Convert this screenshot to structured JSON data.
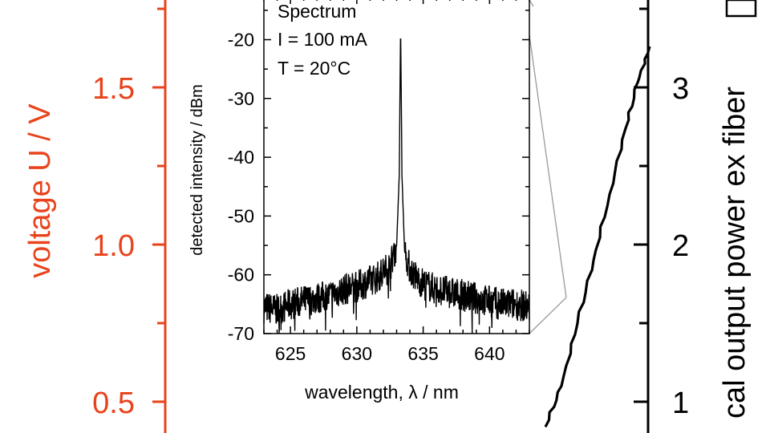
{
  "colors": {
    "voltage": "#e8431c",
    "power": "#000000",
    "inset_zoom_lines": "#9a9a9a"
  },
  "chart_data": [
    {
      "type": "line",
      "title": "",
      "ylabel_left": "voltage U / V",
      "ylabel_right": "cal output power ex fiber",
      "y_left_tick_labels": [
        "1.5",
        "1.0",
        "0.5"
      ],
      "y_left_visible_range": [
        0.31,
        1.88
      ],
      "y_right_tick_labels": [
        "3",
        "2",
        "1"
      ],
      "y_right_visible_range": [
        0.8,
        3.55
      ],
      "left_axis_color": "#e8431c",
      "right_axis_color": "#000000",
      "series": [
        {
          "axis": "right",
          "color": "#000000",
          "points": [
            {
              "x": -0.2,
              "y": 0.84
            },
            {
              "x": 0.0,
              "y": 1.1
            },
            {
              "x": 0.2,
              "y": 1.5
            },
            {
              "x": 0.4,
              "y": 1.9
            },
            {
              "x": 0.6,
              "y": 2.32
            },
            {
              "x": 0.8,
              "y": 2.74
            },
            {
              "x": 0.95,
              "y": 3.03
            },
            {
              "x": 1.1,
              "y": 3.26
            }
          ]
        }
      ]
    },
    {
      "type": "line",
      "title": "",
      "annotation": [
        "Spectrum",
        "I = 100 mA",
        "T = 20°C"
      ],
      "xlabel": "wavelength, λ / nm",
      "ylabel": "detected intensity / dBm",
      "x_ticks": [
        625,
        630,
        635,
        640
      ],
      "y_ticks": [
        -20,
        -30,
        -40,
        -50,
        -60,
        -70
      ],
      "xlim": [
        623,
        643
      ],
      "ylim": [
        -70,
        -15
      ],
      "series": [
        {
          "color": "#000000",
          "x": [
            623,
            624,
            625,
            626,
            627,
            628,
            629,
            630,
            630.5,
            631,
            631.5,
            632,
            632.5,
            633.0,
            633.2,
            633.3,
            633.4,
            633.6,
            634,
            634.5,
            635,
            636,
            637,
            638,
            639,
            640,
            641,
            642,
            643
          ],
          "y": [
            -65.5,
            -66,
            -65,
            -64.5,
            -64,
            -63.5,
            -62.5,
            -62,
            -61.5,
            -61,
            -60.5,
            -59.5,
            -58.5,
            -55,
            -43,
            -17,
            -43,
            -56,
            -59,
            -60.5,
            -61.5,
            -62.5,
            -63,
            -63.5,
            -64,
            -64.5,
            -65,
            -65,
            -65.5
          ]
        }
      ]
    }
  ]
}
